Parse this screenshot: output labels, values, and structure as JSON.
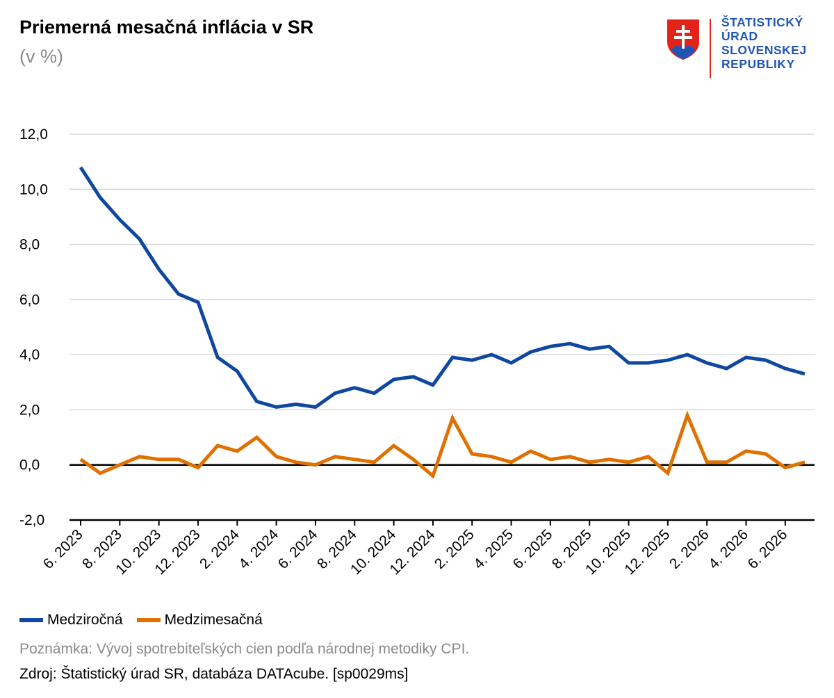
{
  "header": {
    "title": "Priemerná mesačná inflácia v SR",
    "subtitle": "(v %)"
  },
  "logo": {
    "lines": [
      "ŠTATISTICKÝ",
      "ÚRAD",
      "SLOVENSKEJ",
      "REPUBLIKY"
    ],
    "emblem_icon": "slovak-coat-of-arms-icon",
    "text_color": "#1f56b5",
    "bar_color": "#e2231a"
  },
  "chart_data": {
    "type": "line",
    "y_ticks": [
      "12,0",
      "10,0",
      "8,0",
      "6,0",
      "4,0",
      "2,0",
      "0,0",
      "-2,0"
    ],
    "ylim": [
      -2,
      12
    ],
    "x": [
      "6. 2023",
      "7. 2023",
      "8. 2023",
      "9. 2023",
      "10. 2023",
      "11. 2023",
      "12. 2023",
      "1. 2024",
      "2. 2024",
      "3. 2024",
      "4. 2024",
      "5. 2024",
      "6. 2024",
      "7. 2024",
      "8. 2024",
      "9. 2024",
      "10. 2024",
      "11. 2024",
      "12. 2024",
      "1. 2025",
      "2. 2025",
      "3. 2025",
      "4. 2025",
      "5. 2025",
      "6. 2025",
      "7. 2025",
      "8. 2025",
      "9. 2025",
      "10. 2025",
      "11. 2025",
      "12. 2025",
      "1. 2026",
      "2. 2026",
      "3. 2026",
      "4. 2026",
      "5. 2026",
      "6. 2026",
      "7. 2026"
    ],
    "x_tick_labels": [
      "6. 2023",
      "8. 2023",
      "10. 2023",
      "12. 2023",
      "2. 2024",
      "4. 2024",
      "6. 2024",
      "8. 2024",
      "10. 2024",
      "12. 2024",
      "2. 2025",
      "4. 2025",
      "6. 2025",
      "8. 2025",
      "10. 2025",
      "12. 2025",
      "2. 2026",
      "4. 2026",
      "6. 2026"
    ],
    "series": [
      {
        "name": "Medziročná",
        "color": "#0f47a1",
        "values": [
          10.8,
          9.7,
          8.9,
          8.2,
          7.1,
          6.2,
          5.9,
          3.9,
          3.4,
          2.3,
          2.1,
          2.2,
          2.1,
          2.6,
          2.8,
          2.6,
          3.1,
          3.2,
          2.9,
          3.9,
          3.8,
          4.0,
          3.7,
          4.1,
          4.3,
          4.4,
          4.2,
          4.3,
          3.7,
          3.7,
          3.8,
          4.0,
          3.7,
          3.5,
          3.9,
          3.8,
          3.5,
          3.3
        ]
      },
      {
        "name": "Medzimesačná",
        "color": "#e07000",
        "values": [
          0.2,
          -0.3,
          0.0,
          0.3,
          0.2,
          0.2,
          -0.1,
          0.7,
          0.5,
          1.0,
          0.3,
          0.1,
          0.0,
          0.3,
          0.2,
          0.1,
          0.7,
          0.2,
          -0.4,
          1.7,
          0.4,
          0.3,
          0.1,
          0.5,
          0.2,
          0.3,
          0.1,
          0.2,
          0.1,
          0.3,
          -0.3,
          1.8,
          0.1,
          0.1,
          0.5,
          0.4,
          -0.1,
          0.1
        ]
      }
    ],
    "grid": true,
    "legend_position": "bottom-left"
  },
  "footer": {
    "note": "Poznámka: Vývoj spotrebiteľských cien podľa národnej metodiky CPI.",
    "source": "Zdroj: Štatistický úrad SR, databáza DATAcube. [sp0029ms]"
  }
}
